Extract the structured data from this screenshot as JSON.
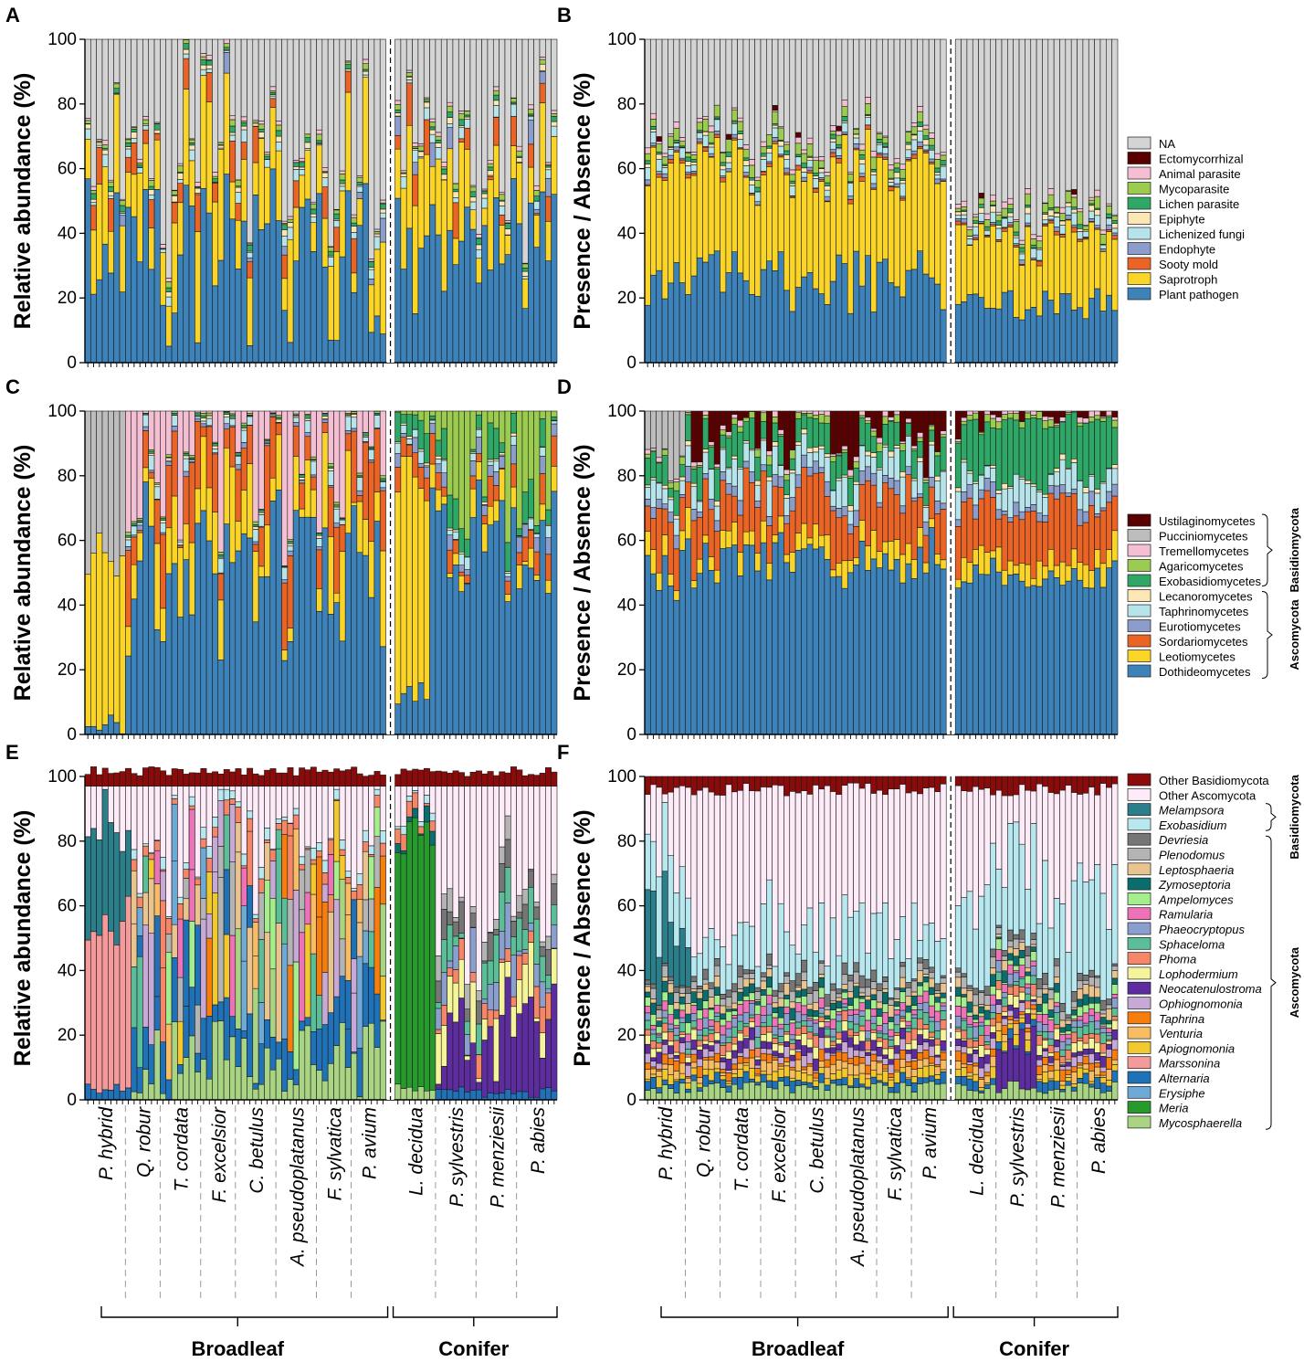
{
  "chart_data": [
    {
      "panel": "A",
      "type": "stacked-bar",
      "ylabel": "Relative abundance (%)",
      "ylim": [
        0,
        100
      ],
      "yticks": [
        "0",
        "20",
        "40",
        "60",
        "80",
        "100"
      ],
      "n_bars": 80,
      "legend": [
        "NA",
        "Ectomycorrhizal",
        "Animal parasite",
        "Mycoparasite",
        "Lichen parasite",
        "Epiphyte",
        "Lichenized fungi",
        "Endophyte",
        "Sooty mold",
        "Saprotroph",
        "Plant pathogen"
      ],
      "legend_colors": [
        "#d4d4d4",
        "#5a0000",
        "#f4bfd3",
        "#9bcb4f",
        "#2fa766",
        "#fce7b4",
        "#b7e4ea",
        "#8c9dcb",
        "#ea6426",
        "#fbd428",
        "#3d82b9"
      ]
    },
    {
      "panel": "B",
      "type": "stacked-bar",
      "ylabel": "Presence / Absence (%)",
      "ylim": [
        0,
        100
      ],
      "yticks": [
        "0",
        "20",
        "40",
        "60",
        "80",
        "100"
      ],
      "n_bars": 80,
      "legend": [
        "NA",
        "Ectomycorrhizal",
        "Animal parasite",
        "Mycoparasite",
        "Lichen parasite",
        "Epiphyte",
        "Lichenized fungi",
        "Endophyte",
        "Sooty mold",
        "Saprotroph",
        "Plant pathogen"
      ]
    },
    {
      "panel": "C",
      "type": "stacked-bar",
      "ylabel": "Relative abundance (%)",
      "ylim": [
        0,
        100
      ],
      "yticks": [
        "0",
        "20",
        "40",
        "60",
        "80",
        "100"
      ],
      "n_bars": 80,
      "legend": [
        "Ustilaginomycetes",
        "Pucciniomycetes",
        "Tremellomycetes",
        "Agaricomycetes",
        "Exobasidiomycetes",
        "Lecanoromycetes",
        "Taphrinomycetes",
        "Eurotiomycetes",
        "Sordariomycetes",
        "Leotiomycetes",
        "Dothideomycetes"
      ],
      "legend_colors": [
        "#5a0000",
        "#bdbdbd",
        "#f4bfd3",
        "#9bcb4f",
        "#2fa766",
        "#fce7b4",
        "#b7e4ea",
        "#8c9dcb",
        "#ea6426",
        "#fbd428",
        "#3d82b9"
      ],
      "groups": [
        "Basidiomycota",
        "Ascomycota"
      ]
    },
    {
      "panel": "D",
      "type": "stacked-bar",
      "ylabel": "Presence / Absence (%)",
      "ylim": [
        0,
        100
      ],
      "yticks": [
        "0",
        "20",
        "40",
        "60",
        "80",
        "100"
      ],
      "n_bars": 80,
      "legend": [
        "Ustilaginomycetes",
        "Pucciniomycetes",
        "Tremellomycetes",
        "Agaricomycetes",
        "Exobasidiomycetes",
        "Lecanoromycetes",
        "Taphrinomycetes",
        "Eurotiomycetes",
        "Sordariomycetes",
        "Leotiomycetes",
        "Dothideomycetes"
      ]
    },
    {
      "panel": "E",
      "type": "stacked-bar",
      "ylabel": "Relative abundance (%)",
      "ylim": [
        0,
        100
      ],
      "yticks": [
        "0",
        "20",
        "40",
        "60",
        "80",
        "100"
      ],
      "n_bars": 80,
      "legend": [
        "Other Basidiomycota",
        "Other Ascomycota",
        "Melampsora",
        "Exobasidium",
        "Devriesia",
        "Plenodomus",
        "Leptosphaeria",
        "Zymoseptoria",
        "Ampelomyces",
        "Ramularia",
        "Phaeocryptopus",
        "Sphaceloma",
        "Phoma",
        "Lophodermium",
        "Neocatenulostroma",
        "Ophiognomonia",
        "Taphrina",
        "Venturia",
        "Apiognomonia",
        "Marssonina",
        "Alternaria",
        "Erysiphe",
        "Meria",
        "Mycosphaerella"
      ],
      "legend_colors": [
        "#8b0a0a",
        "#fdebf8",
        "#2a7f8a",
        "#b8e8ef",
        "#767676",
        "#b4b4b4",
        "#e9c48f",
        "#0b6e6e",
        "#a5ee8e",
        "#ee72b8",
        "#8b9fcf",
        "#5cbe98",
        "#f58668",
        "#f6f49a",
        "#5d2da0",
        "#c8a9d6",
        "#f77d0d",
        "#f8bc64",
        "#f2c82f",
        "#f59a9a",
        "#1f72b7",
        "#6fa9d6",
        "#279a2e",
        "#a9d483"
      ],
      "groups": [
        "Basidiomycota",
        "Ascomycota"
      ]
    },
    {
      "panel": "F",
      "type": "stacked-bar",
      "ylabel": "Presence / Absence (%)",
      "ylim": [
        0,
        100
      ],
      "yticks": [
        "0",
        "20",
        "40",
        "60",
        "80",
        "100"
      ],
      "n_bars": 80,
      "legend": [
        "Other Basidiomycota",
        "Other Ascomycota",
        "Melampsora",
        "Exobasidium",
        "Devriesia",
        "Plenodomus",
        "Leptosphaeria",
        "Zymoseptoria",
        "Ampelomyces",
        "Ramularia",
        "Phaeocryptopus",
        "Sphaceloma",
        "Phoma",
        "Lophodermium",
        "Neocatenulostroma",
        "Ophiognomonia",
        "Taphrina",
        "Venturia",
        "Apiognomonia",
        "Marssonina",
        "Alternaria",
        "Erysiphe",
        "Meria",
        "Mycosphaerella"
      ]
    }
  ],
  "panel_letters": [
    "A",
    "B",
    "C",
    "D",
    "E",
    "F"
  ],
  "species": [
    "P. hybrid",
    "Q. robur",
    "T. cordata",
    "F. excelsior",
    "C. betulus",
    "A. pseudoplatanus",
    "F. sylvatica",
    "P. avium",
    "L. decidua",
    "P. sylvestris",
    "P. menziesii",
    "P. abies"
  ],
  "groups": {
    "broadleaf": "Broadleaf",
    "conifer": "Conifer"
  },
  "phyla": {
    "basidio": "Basidiomycota",
    "asco": "Ascomycota"
  }
}
